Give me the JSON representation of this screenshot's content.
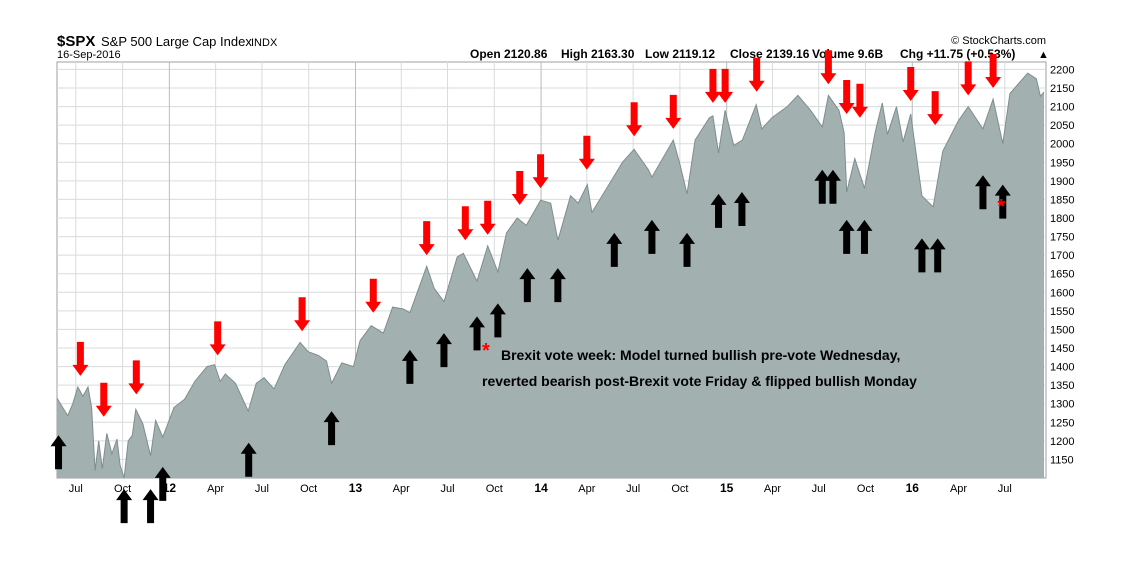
{
  "header": {
    "ticker": "$SPX",
    "name": "S&P 500 Large Cap Index",
    "exchange": "INDX",
    "date": "16-Sep-2016",
    "watermark": "© StockCharts.com",
    "ohlc": [
      {
        "label": "Open",
        "value": "2120.86"
      },
      {
        "label": "High",
        "value": "2163.30"
      },
      {
        "label": "Low",
        "value": "2119.12"
      },
      {
        "label": "Close",
        "value": "2139.16"
      },
      {
        "label": "Volume",
        "value": "9.6B"
      },
      {
        "label": "Chg",
        "value": "+11.75 (+0.53%)"
      }
    ],
    "up_arrow": "▲"
  },
  "annotation": {
    "star": "*",
    "line1": "Brexit vote week: Model turned bullish pre-vote Wednesday,",
    "line2": "reverted bearish post-Brexit vote Friday & flipped bullish Monday"
  },
  "colors": {
    "area_fill": "#a3b0b0",
    "area_line": "#7e8d8d",
    "bearish_arrow": "#ff0000",
    "bullish_arrow": "#000000",
    "grid": "#d8dcdc"
  },
  "chart_data": {
    "type": "area",
    "ylim": [
      1100,
      2220
    ],
    "yticks": [
      1150,
      1200,
      1250,
      1300,
      1350,
      1400,
      1450,
      1500,
      1550,
      1600,
      1650,
      1700,
      1750,
      1800,
      1850,
      1900,
      1950,
      2000,
      2050,
      2100,
      2150,
      2200
    ],
    "xlim": [
      "2011-05-25",
      "2016-09-20"
    ],
    "xticks": [
      {
        "date": "2011-07-01",
        "label": "Jul"
      },
      {
        "date": "2011-10-01",
        "label": "Oct"
      },
      {
        "date": "2012-01-01",
        "label": "12"
      },
      {
        "date": "2012-04-01",
        "label": "Apr"
      },
      {
        "date": "2012-07-01",
        "label": "Jul"
      },
      {
        "date": "2012-10-01",
        "label": "Oct"
      },
      {
        "date": "2013-01-01",
        "label": "13"
      },
      {
        "date": "2013-04-01",
        "label": "Apr"
      },
      {
        "date": "2013-07-01",
        "label": "Jul"
      },
      {
        "date": "2013-10-01",
        "label": "Oct"
      },
      {
        "date": "2014-01-01",
        "label": "14"
      },
      {
        "date": "2014-04-01",
        "label": "Apr"
      },
      {
        "date": "2014-07-01",
        "label": "Jul"
      },
      {
        "date": "2014-10-01",
        "label": "Oct"
      },
      {
        "date": "2015-01-01",
        "label": "15"
      },
      {
        "date": "2015-04-01",
        "label": "Apr"
      },
      {
        "date": "2015-07-01",
        "label": "Jul"
      },
      {
        "date": "2015-10-01",
        "label": "Oct"
      },
      {
        "date": "2016-01-01",
        "label": "16"
      },
      {
        "date": "2016-04-01",
        "label": "Apr"
      },
      {
        "date": "2016-07-01",
        "label": "Jul"
      }
    ],
    "series": [
      {
        "points": [
          [
            "2011-05-25",
            1315
          ],
          [
            "2011-06-05",
            1290
          ],
          [
            "2011-06-15",
            1268
          ],
          [
            "2011-06-25",
            1300
          ],
          [
            "2011-07-05",
            1345
          ],
          [
            "2011-07-15",
            1320
          ],
          [
            "2011-07-25",
            1345
          ],
          [
            "2011-08-01",
            1290
          ],
          [
            "2011-08-08",
            1120
          ],
          [
            "2011-08-15",
            1200
          ],
          [
            "2011-08-22",
            1125
          ],
          [
            "2011-08-31",
            1220
          ],
          [
            "2011-09-10",
            1165
          ],
          [
            "2011-09-20",
            1205
          ],
          [
            "2011-09-26",
            1135
          ],
          [
            "2011-10-04",
            1100
          ],
          [
            "2011-10-12",
            1200
          ],
          [
            "2011-10-20",
            1215
          ],
          [
            "2011-10-27",
            1285
          ],
          [
            "2011-11-10",
            1245
          ],
          [
            "2011-11-25",
            1160
          ],
          [
            "2011-12-05",
            1255
          ],
          [
            "2011-12-19",
            1210
          ],
          [
            "2012-01-10",
            1290
          ],
          [
            "2012-01-31",
            1312
          ],
          [
            "2012-02-20",
            1360
          ],
          [
            "2012-03-15",
            1400
          ],
          [
            "2012-03-30",
            1405
          ],
          [
            "2012-04-10",
            1360
          ],
          [
            "2012-04-20",
            1380
          ],
          [
            "2012-05-10",
            1355
          ],
          [
            "2012-05-25",
            1310
          ],
          [
            "2012-06-04",
            1280
          ],
          [
            "2012-06-20",
            1355
          ],
          [
            "2012-07-05",
            1370
          ],
          [
            "2012-07-25",
            1340
          ],
          [
            "2012-08-15",
            1405
          ],
          [
            "2012-09-14",
            1465
          ],
          [
            "2012-09-30",
            1440
          ],
          [
            "2012-10-20",
            1430
          ],
          [
            "2012-11-05",
            1415
          ],
          [
            "2012-11-15",
            1355
          ],
          [
            "2012-12-05",
            1410
          ],
          [
            "2012-12-28",
            1400
          ],
          [
            "2013-01-10",
            1470
          ],
          [
            "2013-02-01",
            1510
          ],
          [
            "2013-02-25",
            1490
          ],
          [
            "2013-03-15",
            1560
          ],
          [
            "2013-04-05",
            1555
          ],
          [
            "2013-04-18",
            1545
          ],
          [
            "2013-05-21",
            1670
          ],
          [
            "2013-06-05",
            1610
          ],
          [
            "2013-06-24",
            1575
          ],
          [
            "2013-07-20",
            1695
          ],
          [
            "2013-08-01",
            1705
          ],
          [
            "2013-08-28",
            1630
          ],
          [
            "2013-09-18",
            1725
          ],
          [
            "2013-10-08",
            1655
          ],
          [
            "2013-10-25",
            1760
          ],
          [
            "2013-11-15",
            1800
          ],
          [
            "2013-12-03",
            1780
          ],
          [
            "2013-12-31",
            1848
          ],
          [
            "2014-01-20",
            1840
          ],
          [
            "2014-02-03",
            1740
          ],
          [
            "2014-02-28",
            1860
          ],
          [
            "2014-03-15",
            1840
          ],
          [
            "2014-04-02",
            1890
          ],
          [
            "2014-04-11",
            1815
          ],
          [
            "2014-05-10",
            1880
          ],
          [
            "2014-06-10",
            1950
          ],
          [
            "2014-07-03",
            1985
          ],
          [
            "2014-07-31",
            1930
          ],
          [
            "2014-08-07",
            1910
          ],
          [
            "2014-09-18",
            2010
          ],
          [
            "2014-10-01",
            1945
          ],
          [
            "2014-10-15",
            1865
          ],
          [
            "2014-10-31",
            2010
          ],
          [
            "2014-11-28",
            2070
          ],
          [
            "2014-12-05",
            2075
          ],
          [
            "2014-12-16",
            1975
          ],
          [
            "2014-12-29",
            2090
          ],
          [
            "2015-01-15",
            1995
          ],
          [
            "2015-02-01",
            2010
          ],
          [
            "2015-02-28",
            2105
          ],
          [
            "2015-03-11",
            2040
          ],
          [
            "2015-03-31",
            2070
          ],
          [
            "2015-04-30",
            2100
          ],
          [
            "2015-05-21",
            2130
          ],
          [
            "2015-06-15",
            2090
          ],
          [
            "2015-07-08",
            2045
          ],
          [
            "2015-07-20",
            2130
          ],
          [
            "2015-08-10",
            2090
          ],
          [
            "2015-08-20",
            2030
          ],
          [
            "2015-08-25",
            1870
          ],
          [
            "2015-09-10",
            1960
          ],
          [
            "2015-09-29",
            1880
          ],
          [
            "2015-10-20",
            2030
          ],
          [
            "2015-11-03",
            2110
          ],
          [
            "2015-11-13",
            2025
          ],
          [
            "2015-12-01",
            2100
          ],
          [
            "2015-12-14",
            2005
          ],
          [
            "2015-12-29",
            2080
          ],
          [
            "2016-01-20",
            1860
          ],
          [
            "2016-02-11",
            1830
          ],
          [
            "2016-03-01",
            1980
          ],
          [
            "2016-03-31",
            2060
          ],
          [
            "2016-04-20",
            2100
          ],
          [
            "2016-05-19",
            2040
          ],
          [
            "2016-06-08",
            2120
          ],
          [
            "2016-06-27",
            2000
          ],
          [
            "2016-07-11",
            2135
          ],
          [
            "2016-08-15",
            2190
          ],
          [
            "2016-09-01",
            2175
          ],
          [
            "2016-09-09",
            2128
          ],
          [
            "2016-09-16",
            2139
          ]
        ]
      }
    ],
    "bearish_arrows": [
      {
        "date": "2011-07-10",
        "y": 1375
      },
      {
        "date": "2011-08-25",
        "y": 1265
      },
      {
        "date": "2011-10-28",
        "y": 1325
      },
      {
        "date": "2012-04-05",
        "y": 1430
      },
      {
        "date": "2012-09-18",
        "y": 1495
      },
      {
        "date": "2013-02-05",
        "y": 1545
      },
      {
        "date": "2013-05-21",
        "y": 1700
      },
      {
        "date": "2013-08-05",
        "y": 1740
      },
      {
        "date": "2013-09-18",
        "y": 1755
      },
      {
        "date": "2013-11-20",
        "y": 1835
      },
      {
        "date": "2013-12-31",
        "y": 1880
      },
      {
        "date": "2014-04-01",
        "y": 1930
      },
      {
        "date": "2014-07-03",
        "y": 2020
      },
      {
        "date": "2014-09-18",
        "y": 2040
      },
      {
        "date": "2014-12-05",
        "y": 2110
      },
      {
        "date": "2014-12-29",
        "y": 2110
      },
      {
        "date": "2015-03-01",
        "y": 2140
      },
      {
        "date": "2015-07-20",
        "y": 2160
      },
      {
        "date": "2015-08-25",
        "y": 2080
      },
      {
        "date": "2015-09-20",
        "y": 2070
      },
      {
        "date": "2015-12-29",
        "y": 2115
      },
      {
        "date": "2016-02-15",
        "y": 2050
      },
      {
        "date": "2016-04-20",
        "y": 2130
      },
      {
        "date": "2016-06-08",
        "y": 2150
      }
    ],
    "bullish_arrows": [
      {
        "date": "2011-05-28",
        "y": 1215
      },
      {
        "date": "2011-10-04",
        "y": 1070
      },
      {
        "date": "2011-11-25",
        "y": 1070
      },
      {
        "date": "2011-12-19",
        "y": 1130
      },
      {
        "date": "2012-06-05",
        "y": 1195
      },
      {
        "date": "2012-11-15",
        "y": 1280
      },
      {
        "date": "2013-04-18",
        "y": 1445
      },
      {
        "date": "2013-06-24",
        "y": 1490
      },
      {
        "date": "2013-08-28",
        "y": 1535
      },
      {
        "date": "2013-10-08",
        "y": 1570
      },
      {
        "date": "2013-12-05",
        "y": 1665
      },
      {
        "date": "2014-02-03",
        "y": 1665
      },
      {
        "date": "2014-05-25",
        "y": 1760
      },
      {
        "date": "2014-08-07",
        "y": 1795
      },
      {
        "date": "2014-10-15",
        "y": 1760
      },
      {
        "date": "2014-12-16",
        "y": 1865
      },
      {
        "date": "2015-01-31",
        "y": 1870
      },
      {
        "date": "2015-07-08",
        "y": 1930
      },
      {
        "date": "2015-07-29",
        "y": 1930
      },
      {
        "date": "2015-08-25",
        "y": 1795
      },
      {
        "date": "2015-09-29",
        "y": 1795
      },
      {
        "date": "2016-01-20",
        "y": 1745
      },
      {
        "date": "2016-02-20",
        "y": 1745
      },
      {
        "date": "2016-05-19",
        "y": 1915
      },
      {
        "date": "2016-06-27",
        "y": 1890
      }
    ],
    "brexit_marker": {
      "date": "2016-06-24",
      "y": 1840
    }
  }
}
